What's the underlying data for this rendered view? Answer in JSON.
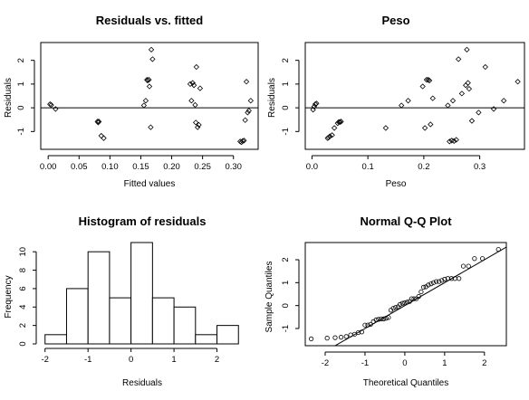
{
  "chart_data": [
    {
      "type": "scatter",
      "title": "Residuals vs. fitted",
      "xlabel": "Fitted values",
      "ylabel": "Residuals",
      "xlim": [
        -0.012,
        0.34
      ],
      "ylim": [
        -1.75,
        2.75
      ],
      "xticks": [
        0.0,
        0.05,
        0.1,
        0.15,
        0.2,
        0.25,
        0.3
      ],
      "xtick_labels": [
        "0.00",
        "0.05",
        "0.10",
        "0.15",
        "0.20",
        "0.25",
        "0.30"
      ],
      "yticks": [
        -1,
        0,
        1,
        2
      ],
      "ytick_labels": [
        "-1",
        "0",
        "1",
        "2"
      ],
      "hline": 0,
      "marker": "open-diamond",
      "points": [
        [
          0.003,
          0.15
        ],
        [
          0.005,
          0.12
        ],
        [
          0.012,
          -0.05
        ],
        [
          0.08,
          -0.58
        ],
        [
          0.081,
          -0.62
        ],
        [
          0.082,
          -0.58
        ],
        [
          0.086,
          -1.18
        ],
        [
          0.09,
          -1.28
        ],
        [
          0.155,
          0.1
        ],
        [
          0.158,
          0.3
        ],
        [
          0.16,
          1.18
        ],
        [
          0.161,
          1.15
        ],
        [
          0.163,
          1.18
        ],
        [
          0.164,
          0.9
        ],
        [
          0.166,
          -0.82
        ],
        [
          0.167,
          2.45
        ],
        [
          0.169,
          2.05
        ],
        [
          0.23,
          1.0
        ],
        [
          0.232,
          0.3
        ],
        [
          0.234,
          1.05
        ],
        [
          0.236,
          0.95
        ],
        [
          0.238,
          0.12
        ],
        [
          0.239,
          -0.62
        ],
        [
          0.24,
          1.72
        ],
        [
          0.242,
          -0.82
        ],
        [
          0.244,
          -0.72
        ],
        [
          0.246,
          0.82
        ],
        [
          0.311,
          -1.42
        ],
        [
          0.313,
          -1.45
        ],
        [
          0.315,
          -1.4
        ],
        [
          0.317,
          -1.38
        ],
        [
          0.319,
          -0.52
        ],
        [
          0.321,
          1.1
        ],
        [
          0.323,
          -0.2
        ],
        [
          0.325,
          -0.12
        ],
        [
          0.328,
          0.3
        ]
      ]
    },
    {
      "type": "scatter",
      "title": "Peso",
      "xlabel": "Peso",
      "ylabel": "Residuals",
      "xlim": [
        -0.012,
        0.38
      ],
      "ylim": [
        -1.75,
        2.75
      ],
      "xticks": [
        0.0,
        0.1,
        0.2,
        0.3
      ],
      "xtick_labels": [
        "0.0",
        "0.1",
        "0.2",
        "0.3"
      ],
      "yticks": [
        -1,
        0,
        1,
        2
      ],
      "ytick_labels": [
        "-1",
        "0",
        "1",
        "2"
      ],
      "hline": 0,
      "marker": "open-diamond",
      "points": [
        [
          0.002,
          -0.08
        ],
        [
          0.004,
          0.05
        ],
        [
          0.006,
          0.15
        ],
        [
          0.008,
          0.18
        ],
        [
          0.028,
          -1.28
        ],
        [
          0.03,
          -1.25
        ],
        [
          0.032,
          -1.2
        ],
        [
          0.036,
          -1.15
        ],
        [
          0.04,
          -0.85
        ],
        [
          0.046,
          -0.65
        ],
        [
          0.048,
          -0.6
        ],
        [
          0.05,
          -0.6
        ],
        [
          0.052,
          -0.58
        ],
        [
          0.132,
          -0.85
        ],
        [
          0.16,
          0.1
        ],
        [
          0.172,
          0.3
        ],
        [
          0.198,
          0.9
        ],
        [
          0.202,
          -0.85
        ],
        [
          0.205,
          1.18
        ],
        [
          0.208,
          1.18
        ],
        [
          0.21,
          1.15
        ],
        [
          0.212,
          -0.7
        ],
        [
          0.216,
          0.4
        ],
        [
          0.243,
          0.1
        ],
        [
          0.246,
          -1.42
        ],
        [
          0.25,
          -1.38
        ],
        [
          0.252,
          0.3
        ],
        [
          0.254,
          -1.4
        ],
        [
          0.258,
          -1.35
        ],
        [
          0.262,
          2.05
        ],
        [
          0.268,
          0.6
        ],
        [
          0.275,
          0.95
        ],
        [
          0.277,
          2.45
        ],
        [
          0.279,
          1.05
        ],
        [
          0.281,
          0.8
        ],
        [
          0.286,
          -0.55
        ],
        [
          0.298,
          -0.2
        ],
        [
          0.31,
          1.72
        ],
        [
          0.325,
          -0.05
        ],
        [
          0.343,
          0.3
        ],
        [
          0.368,
          1.1
        ]
      ]
    },
    {
      "type": "histogram",
      "title": "Histogram of residuals",
      "xlabel": "Residuals",
      "ylabel": "Frequency",
      "bin_edges": [
        -2.0,
        -1.5,
        -1.0,
        -0.5,
        0.0,
        0.5,
        1.0,
        1.5,
        2.0,
        2.5
      ],
      "counts": [
        1,
        6,
        10,
        5,
        11,
        5,
        4,
        1,
        2
      ],
      "xlim": [
        -2.1,
        2.6
      ],
      "ylim": [
        0,
        11
      ],
      "xticks": [
        -2,
        -1,
        0,
        1,
        2
      ],
      "xtick_labels": [
        "-2",
        "-1",
        "0",
        "1",
        "2"
      ],
      "yticks": [
        0,
        2,
        4,
        6,
        8,
        10
      ],
      "ytick_labels": [
        "0",
        "2",
        "4",
        "6",
        "8",
        "10"
      ]
    },
    {
      "type": "scatter",
      "title": "Normal Q-Q Plot",
      "xlabel": "Theoretical Quantiles",
      "ylabel": "Sample Quantiles",
      "xlim": [
        -2.5,
        2.55
      ],
      "ylim": [
        -1.75,
        2.75
      ],
      "xticks": [
        -2,
        -1,
        0,
        1,
        2
      ],
      "xtick_labels": [
        "-2",
        "-1",
        "0",
        "1",
        "2"
      ],
      "yticks": [
        -1,
        0,
        1,
        2
      ],
      "ytick_labels": [
        "-1",
        "0",
        "1",
        "2"
      ],
      "marker": "open-circle",
      "reference_line": {
        "intercept": 0.0,
        "slope": 1.0
      },
      "points": [
        [
          -2.35,
          -1.45
        ],
        [
          -1.95,
          -1.42
        ],
        [
          -1.75,
          -1.4
        ],
        [
          -1.6,
          -1.38
        ],
        [
          -1.47,
          -1.35
        ],
        [
          -1.36,
          -1.28
        ],
        [
          -1.26,
          -1.25
        ],
        [
          -1.17,
          -1.18
        ],
        [
          -1.08,
          -1.15
        ],
        [
          -1.0,
          -0.85
        ],
        [
          -0.93,
          -0.85
        ],
        [
          -0.86,
          -0.82
        ],
        [
          -0.79,
          -0.7
        ],
        [
          -0.72,
          -0.62
        ],
        [
          -0.66,
          -0.6
        ],
        [
          -0.59,
          -0.58
        ],
        [
          -0.53,
          -0.58
        ],
        [
          -0.47,
          -0.55
        ],
        [
          -0.41,
          -0.52
        ],
        [
          -0.35,
          -0.2
        ],
        [
          -0.29,
          -0.12
        ],
        [
          -0.23,
          -0.08
        ],
        [
          -0.17,
          -0.05
        ],
        [
          -0.12,
          0.05
        ],
        [
          -0.06,
          0.1
        ],
        [
          0.0,
          0.12
        ],
        [
          0.06,
          0.15
        ],
        [
          0.12,
          0.18
        ],
        [
          0.17,
          0.3
        ],
        [
          0.23,
          0.3
        ],
        [
          0.29,
          0.3
        ],
        [
          0.35,
          0.4
        ],
        [
          0.41,
          0.6
        ],
        [
          0.47,
          0.8
        ],
        [
          0.53,
          0.82
        ],
        [
          0.59,
          0.9
        ],
        [
          0.66,
          0.95
        ],
        [
          0.72,
          1.0
        ],
        [
          0.79,
          1.05
        ],
        [
          0.86,
          1.05
        ],
        [
          0.93,
          1.1
        ],
        [
          1.0,
          1.15
        ],
        [
          1.08,
          1.18
        ],
        [
          1.17,
          1.18
        ],
        [
          1.26,
          1.18
        ],
        [
          1.36,
          1.18
        ],
        [
          1.47,
          1.72
        ],
        [
          1.6,
          1.72
        ],
        [
          1.75,
          2.05
        ],
        [
          1.95,
          2.05
        ],
        [
          2.35,
          2.45
        ]
      ]
    }
  ]
}
